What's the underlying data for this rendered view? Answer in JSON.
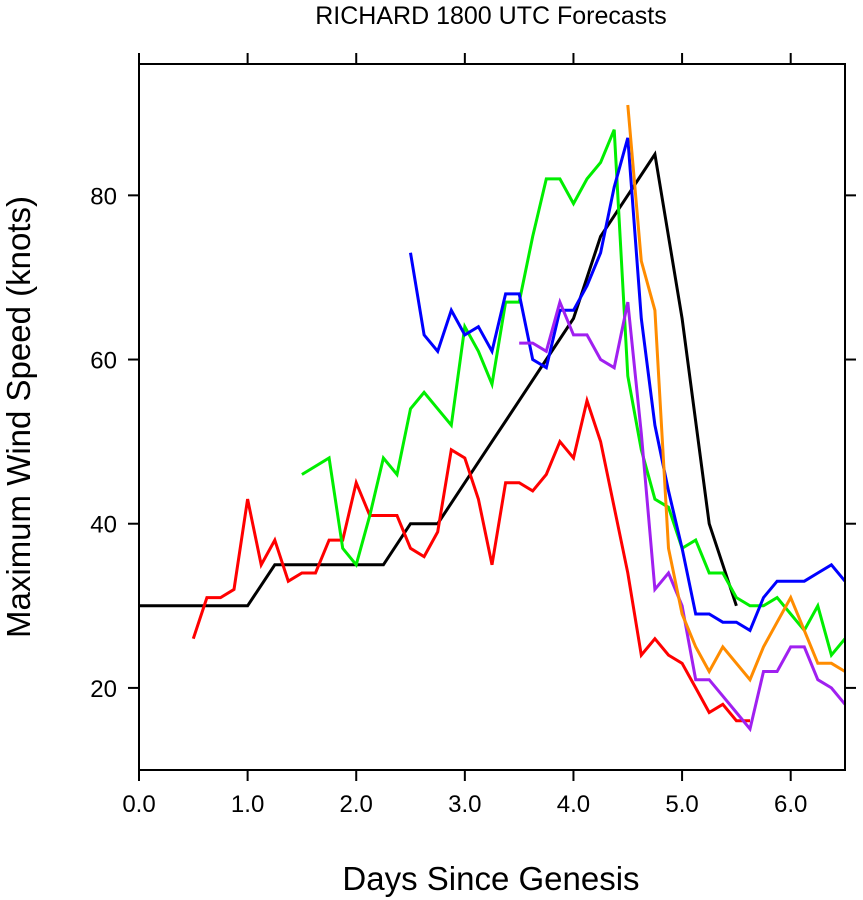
{
  "chart_data": {
    "type": "line",
    "title": "RICHARD 1800 UTC Forecasts",
    "xlabel": "Days Since Genesis",
    "ylabel": "Maximum Wind Speed (knots)",
    "xlim": [
      0,
      6.5
    ],
    "ylim": [
      10,
      96
    ],
    "xticks": [
      0,
      1,
      2,
      3,
      4,
      5,
      6
    ],
    "xtick_labels": [
      "0.0",
      "1.0",
      "2.0",
      "3.0",
      "4.0",
      "5.0",
      "6.0"
    ],
    "yticks": [
      20,
      40,
      60,
      80
    ],
    "ytick_labels": [
      "20",
      "40",
      "60",
      "80"
    ],
    "grid": false,
    "series": [
      {
        "color": "#000000",
        "x": [
          0,
          1.0,
          1.25,
          2.25,
          2.5,
          2.75,
          3.0,
          3.25,
          3.5,
          3.75,
          4.0,
          4.25,
          4.5,
          4.75,
          5.0,
          5.25,
          5.5
        ],
        "y": [
          30,
          30,
          35,
          35,
          40,
          40,
          45,
          50,
          55,
          60,
          65,
          75,
          80,
          85,
          65,
          40,
          30
        ]
      },
      {
        "color": "#ff0000",
        "x": [
          0.5,
          0.625,
          0.75,
          0.875,
          1.0,
          1.125,
          1.25,
          1.375,
          1.5,
          1.625,
          1.75,
          1.875,
          2.0,
          2.125,
          2.25,
          2.375,
          2.5,
          2.625,
          2.75,
          2.875,
          3.0,
          3.125,
          3.25,
          3.375,
          3.5,
          3.625,
          3.75,
          3.875,
          4.0,
          4.125,
          4.25,
          4.375,
          4.5,
          4.625,
          4.75,
          4.875,
          5.0,
          5.125,
          5.25,
          5.375,
          5.5,
          5.625
        ],
        "y": [
          26,
          31,
          31,
          32,
          43,
          35,
          38,
          33,
          34,
          34,
          38,
          38,
          45,
          41,
          41,
          41,
          37,
          36,
          39,
          49,
          48,
          43,
          35,
          45,
          45,
          44,
          46,
          50,
          48,
          55,
          50,
          42,
          34,
          24,
          26,
          24,
          23,
          20,
          17,
          18,
          16,
          16
        ]
      },
      {
        "color": "#00ee00",
        "x": [
          1.5,
          1.75,
          1.875,
          2.0,
          2.125,
          2.25,
          2.375,
          2.5,
          2.625,
          2.75,
          2.875,
          3.0,
          3.125,
          3.25,
          3.375,
          3.5,
          3.625,
          3.75,
          3.875,
          4.0,
          4.125,
          4.25,
          4.375,
          4.5,
          4.625,
          4.75,
          4.875,
          5.0,
          5.125,
          5.25,
          5.375,
          5.5,
          5.625,
          5.75,
          5.875,
          6.0,
          6.125,
          6.25,
          6.375,
          6.5
        ],
        "y": [
          46,
          48,
          37,
          35,
          41,
          48,
          46,
          54,
          56,
          54,
          52,
          64,
          61,
          57,
          67,
          67,
          75,
          82,
          82,
          79,
          82,
          84,
          88,
          58,
          49,
          43,
          42,
          37,
          38,
          34,
          34,
          31,
          30,
          30,
          31,
          29,
          27,
          30,
          24,
          26
        ]
      },
      {
        "color": "#0000ff",
        "x": [
          2.5,
          2.625,
          2.75,
          2.875,
          3.0,
          3.125,
          3.25,
          3.375,
          3.5,
          3.625,
          3.75,
          3.875,
          4.0,
          4.125,
          4.25,
          4.375,
          4.5,
          4.625,
          4.75,
          4.875,
          5.0,
          5.125,
          5.25,
          5.375,
          5.5,
          5.625,
          5.75,
          5.875,
          6.0,
          6.125,
          6.25,
          6.375,
          6.5
        ],
        "y": [
          73,
          63,
          61,
          66,
          63,
          64,
          61,
          68,
          68,
          60,
          59,
          66,
          66,
          69,
          73,
          81,
          87,
          65,
          52,
          44,
          37,
          29,
          29,
          28,
          28,
          27,
          31,
          33,
          33,
          33,
          34,
          35,
          33
        ]
      },
      {
        "color": "#a020f0",
        "x": [
          3.5,
          3.625,
          3.75,
          3.875,
          4.0,
          4.125,
          4.25,
          4.375,
          4.5,
          4.625,
          4.75,
          4.875,
          5.0,
          5.125,
          5.25,
          5.375,
          5.5,
          5.625,
          5.75,
          5.875,
          6.0,
          6.125,
          6.25,
          6.375,
          6.5
        ],
        "y": [
          62,
          62,
          61,
          67,
          63,
          63,
          60,
          59,
          67,
          51,
          32,
          34,
          30,
          21,
          21,
          19,
          17,
          15,
          22,
          22,
          25,
          25,
          21,
          20,
          18
        ]
      },
      {
        "color": "#ff8c00",
        "x": [
          4.5,
          4.625,
          4.75,
          4.875,
          5.0,
          5.125,
          5.25,
          5.375,
          5.5,
          5.625,
          5.75,
          5.875,
          6.0,
          6.125,
          6.25,
          6.375,
          6.5
        ],
        "y": [
          91,
          72,
          66,
          37,
          29,
          25,
          22,
          25,
          23,
          21,
          25,
          28,
          31,
          27,
          23,
          23,
          22
        ]
      }
    ]
  }
}
